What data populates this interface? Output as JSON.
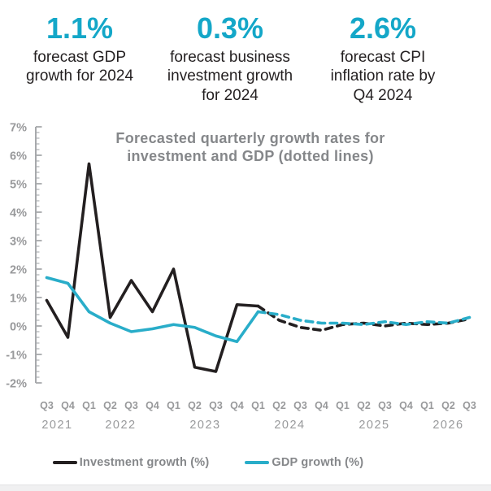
{
  "colors": {
    "teal": "#14a7c8",
    "dark": "#231f20",
    "gray_title": "#85878a",
    "gray_axis": "#98999b",
    "light_strip": "#f0f0f1"
  },
  "stats": [
    {
      "value": "1.1%",
      "label": "forecast GDP\ngrowth for 2024"
    },
    {
      "value": "0.3%",
      "label": "forecast business\ninvestment growth\nfor 2024"
    },
    {
      "value": "2.6%",
      "label": "forecast CPI\ninflation rate by\nQ4 2024"
    }
  ],
  "chart_data": {
    "type": "line",
    "title": "Forecasted quarterly growth rates for investment and GDP (dotted lines)",
    "title_lines": [
      "Forecasted quarterly growth rates for",
      "investment and GDP (dotted lines)"
    ],
    "ylabel": "",
    "xlabel": "",
    "ylim": [
      -2,
      7
    ],
    "y_tick_format": "percent",
    "y_major_step": 1,
    "y_minor_step": 0.2,
    "grid": "off",
    "legend_position": "bottom",
    "x_quarters": [
      "Q3",
      "Q4",
      "Q1",
      "Q2",
      "Q3",
      "Q4",
      "Q1",
      "Q2",
      "Q3",
      "Q4",
      "Q1",
      "Q2",
      "Q3",
      "Q4",
      "Q1",
      "Q2",
      "Q3",
      "Q4",
      "Q1",
      "Q2",
      "Q3"
    ],
    "x_years": [
      {
        "label": "2021",
        "span": [
          0,
          1
        ]
      },
      {
        "label": "2022",
        "span": [
          2,
          5
        ]
      },
      {
        "label": "2023",
        "span": [
          6,
          9
        ]
      },
      {
        "label": "2024",
        "span": [
          10,
          13
        ]
      },
      {
        "label": "2025",
        "span": [
          14,
          17
        ]
      },
      {
        "label": "2026",
        "span": [
          18,
          20
        ]
      }
    ],
    "forecast_note": "dotted segments from Q1 2024 onward are forecasts",
    "series": [
      {
        "name": "Investment growth (%)",
        "color": "#231f20",
        "actual_x": [
          "Q3 2021",
          "Q4 2021",
          "Q1 2022",
          "Q2 2022",
          "Q3 2022",
          "Q4 2022",
          "Q1 2023",
          "Q2 2023",
          "Q3 2023",
          "Q4 2023",
          "Q1 2024"
        ],
        "actual": [
          0.9,
          -0.4,
          5.7,
          0.3,
          1.6,
          0.5,
          2.0,
          -1.45,
          -1.6,
          0.75,
          0.7
        ],
        "forecast_x": [
          "Q1 2024",
          "Q2 2024",
          "Q3 2024",
          "Q4 2024",
          "Q1 2025",
          "Q2 2025",
          "Q3 2025",
          "Q4 2025",
          "Q1 2026",
          "Q2 2026",
          "Q3 2026"
        ],
        "forecast": [
          0.7,
          0.2,
          -0.05,
          -0.15,
          0.05,
          0.1,
          0.0,
          0.1,
          0.05,
          0.1,
          0.25
        ]
      },
      {
        "name": "GDP growth (%)",
        "color": "#29adc9",
        "actual_x": [
          "Q3 2021",
          "Q4 2021",
          "Q1 2022",
          "Q2 2022",
          "Q3 2022",
          "Q4 2022",
          "Q1 2023",
          "Q2 2023",
          "Q3 2023",
          "Q4 2023",
          "Q1 2024"
        ],
        "actual": [
          1.7,
          1.5,
          0.5,
          0.1,
          -0.2,
          -0.1,
          0.05,
          -0.05,
          -0.35,
          -0.55,
          0.5
        ],
        "forecast_x": [
          "Q1 2024",
          "Q2 2024",
          "Q3 2024",
          "Q4 2024",
          "Q1 2025",
          "Q2 2025",
          "Q3 2025",
          "Q4 2025",
          "Q1 2026",
          "Q2 2026",
          "Q3 2026"
        ],
        "forecast": [
          0.5,
          0.4,
          0.2,
          0.1,
          0.1,
          0.05,
          0.15,
          0.05,
          0.15,
          0.1,
          0.3
        ]
      }
    ]
  }
}
